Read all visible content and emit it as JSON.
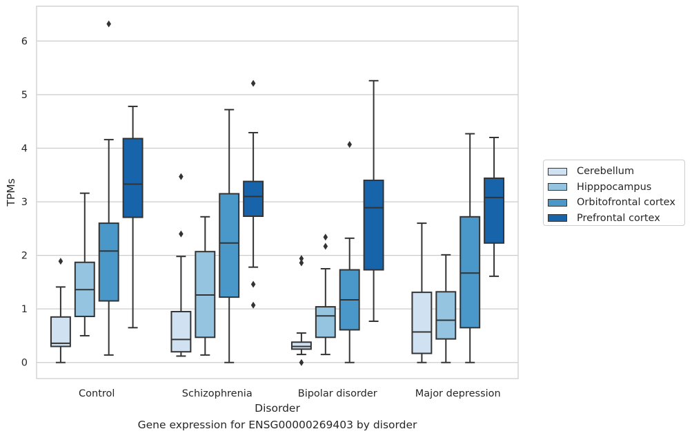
{
  "caption": "Gene expression for ENSG00000269403 by disorder",
  "chart_data": {
    "type": "box",
    "title": "",
    "xlabel": "Disorder",
    "ylabel": "TPMs",
    "ylim": [
      -0.3,
      6.65
    ],
    "yticks": [
      0,
      1,
      2,
      3,
      4,
      5,
      6
    ],
    "grid": "horizontal",
    "legend_position": "right",
    "categories": [
      "Control",
      "Schizophrenia",
      "Bipolar disorder",
      "Major depression"
    ],
    "series": [
      {
        "name": "Cerebellum",
        "color": "#d0e1f2",
        "boxes": [
          {
            "whisker_low": 0.0,
            "q1": 0.3,
            "median": 0.36,
            "q3": 0.85,
            "whisker_high": 1.41,
            "outliers": [
              1.89
            ]
          },
          {
            "whisker_low": 0.12,
            "q1": 0.2,
            "median": 0.43,
            "q3": 0.95,
            "whisker_high": 1.98,
            "outliers": [
              2.4,
              3.47
            ]
          },
          {
            "whisker_low": 0.15,
            "q1": 0.25,
            "median": 0.3,
            "q3": 0.38,
            "whisker_high": 0.55,
            "outliers": [
              0.0,
              1.86,
              1.94
            ]
          },
          {
            "whisker_low": 0.0,
            "q1": 0.17,
            "median": 0.57,
            "q3": 1.31,
            "whisker_high": 2.6,
            "outliers": []
          }
        ]
      },
      {
        "name": "Hipppocampus",
        "color": "#94c4df",
        "boxes": [
          {
            "whisker_low": 0.5,
            "q1": 0.86,
            "median": 1.36,
            "q3": 1.87,
            "whisker_high": 3.16,
            "outliers": []
          },
          {
            "whisker_low": 0.14,
            "q1": 0.47,
            "median": 1.26,
            "q3": 2.07,
            "whisker_high": 2.72,
            "outliers": []
          },
          {
            "whisker_low": 0.15,
            "q1": 0.47,
            "median": 0.87,
            "q3": 1.04,
            "whisker_high": 1.75,
            "outliers": [
              2.17,
              2.34
            ]
          },
          {
            "whisker_low": 0.0,
            "q1": 0.44,
            "median": 0.79,
            "q3": 1.32,
            "whisker_high": 2.01,
            "outliers": []
          }
        ]
      },
      {
        "name": "Orbitofrontal cortex",
        "color": "#4a98c9",
        "boxes": [
          {
            "whisker_low": 0.14,
            "q1": 1.15,
            "median": 2.08,
            "q3": 2.6,
            "whisker_high": 4.16,
            "outliers": [
              6.32
            ]
          },
          {
            "whisker_low": 0.0,
            "q1": 1.22,
            "median": 2.23,
            "q3": 3.15,
            "whisker_high": 4.72,
            "outliers": []
          },
          {
            "whisker_low": 0.0,
            "q1": 0.61,
            "median": 1.17,
            "q3": 1.73,
            "whisker_high": 2.32,
            "outliers": [
              4.07
            ]
          },
          {
            "whisker_low": 0.0,
            "q1": 0.65,
            "median": 1.67,
            "q3": 2.72,
            "whisker_high": 4.27,
            "outliers": []
          }
        ]
      },
      {
        "name": "Prefrontal cortex",
        "color": "#1764ab",
        "boxes": [
          {
            "whisker_low": 0.65,
            "q1": 2.71,
            "median": 3.33,
            "q3": 4.18,
            "whisker_high": 4.78,
            "outliers": []
          },
          {
            "whisker_low": 1.78,
            "q1": 2.73,
            "median": 3.1,
            "q3": 3.38,
            "whisker_high": 4.29,
            "outliers": [
              1.07,
              1.46,
              5.21
            ]
          },
          {
            "whisker_low": 0.77,
            "q1": 1.73,
            "median": 2.89,
            "q3": 3.4,
            "whisker_high": 5.26,
            "outliers": []
          },
          {
            "whisker_low": 1.61,
            "q1": 2.23,
            "median": 3.08,
            "q3": 3.44,
            "whisker_high": 4.2,
            "outliers": []
          }
        ]
      }
    ]
  }
}
